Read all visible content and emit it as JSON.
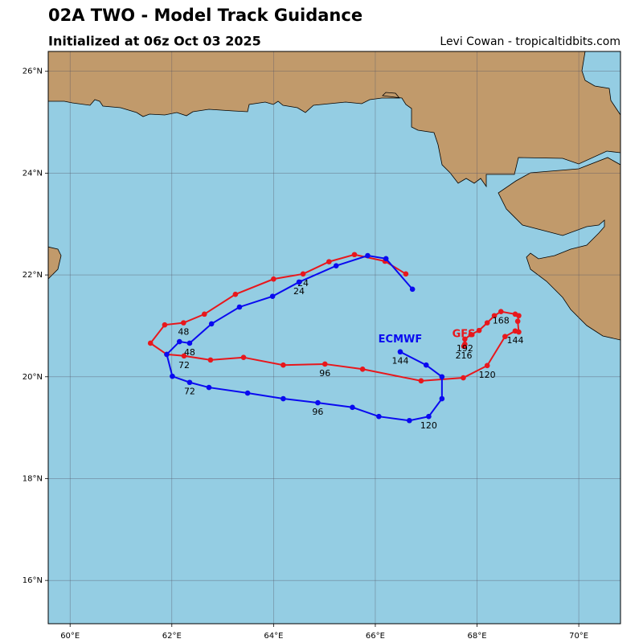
{
  "chart_data": {
    "type": "track",
    "title": "02A TWO - Model Track Guidance",
    "subtitle": "Initialized at 06z Oct 03 2025",
    "credit": "Levi Cowan - tropicaltidbits.com",
    "xlim": [
      59.57,
      70.82
    ],
    "ylim": [
      15.15,
      26.39
    ],
    "xticks": [
      {
        "value": 60,
        "label": "60°E"
      },
      {
        "value": 62,
        "label": "62°E"
      },
      {
        "value": 64,
        "label": "64°E"
      },
      {
        "value": 66,
        "label": "66°E"
      },
      {
        "value": 68,
        "label": "68°E"
      },
      {
        "value": 70,
        "label": "70°E"
      }
    ],
    "yticks": [
      {
        "value": 16,
        "label": "16°N"
      },
      {
        "value": 18,
        "label": "18°N"
      },
      {
        "value": 20,
        "label": "20°N"
      },
      {
        "value": 22,
        "label": "22°N"
      },
      {
        "value": 24,
        "label": "24°N"
      },
      {
        "value": 26,
        "label": "26°N"
      }
    ],
    "grid": true,
    "series": [
      {
        "name": "GFS",
        "color": "#e8171c",
        "x": [
          66.6,
          66.19,
          65.59,
          65.09,
          64.58,
          64.0,
          63.25,
          62.64,
          62.23,
          61.86,
          61.58,
          61.9,
          62.24,
          62.76,
          63.41,
          64.19,
          65.01,
          65.75,
          66.9,
          67.73,
          68.2,
          68.55,
          68.75,
          68.82,
          68.8,
          68.82,
          68.75,
          68.47,
          68.34,
          68.2,
          68.04,
          67.88,
          67.76,
          67.76,
          67.74
        ],
        "values": [
          22.02,
          22.27,
          22.4,
          22.26,
          22.02,
          21.92,
          21.62,
          21.23,
          21.06,
          21.02,
          20.66,
          20.44,
          20.41,
          20.33,
          20.38,
          20.23,
          20.25,
          20.15,
          19.92,
          19.98,
          20.22,
          20.79,
          20.9,
          20.88,
          21.09,
          21.2,
          21.23,
          21.28,
          21.2,
          21.06,
          20.91,
          20.83,
          20.74,
          20.64,
          20.6
        ],
        "labels": [
          null,
          null,
          null,
          null,
          "24",
          null,
          null,
          null,
          "48",
          null,
          null,
          null,
          "72",
          null,
          null,
          null,
          "96",
          null,
          null,
          null,
          "120",
          null,
          "144",
          null,
          null,
          null,
          null,
          "168",
          null,
          null,
          null,
          null,
          "192",
          null,
          "216"
        ]
      },
      {
        "name": "ECMWF",
        "color": "#0a0af0",
        "x": [
          66.73,
          66.21,
          65.85,
          65.23,
          64.5,
          63.98,
          63.33,
          62.78,
          62.35,
          62.15,
          61.9,
          62.01,
          62.35,
          62.73,
          63.49,
          64.19,
          64.87,
          65.55,
          66.07,
          66.67,
          67.05,
          67.31,
          67.31,
          67.0,
          66.49
        ],
        "values": [
          21.72,
          22.32,
          22.38,
          22.18,
          21.86,
          21.58,
          21.37,
          21.04,
          20.66,
          20.69,
          20.44,
          20.01,
          19.89,
          19.79,
          19.68,
          19.57,
          19.49,
          19.4,
          19.22,
          19.14,
          19.22,
          19.57,
          20.0,
          20.23,
          20.49
        ],
        "labels": [
          null,
          null,
          null,
          null,
          "24",
          null,
          null,
          null,
          "48",
          null,
          null,
          null,
          "72",
          null,
          null,
          null,
          "96",
          null,
          null,
          null,
          "120",
          null,
          null,
          null,
          "144"
        ]
      }
    ]
  }
}
